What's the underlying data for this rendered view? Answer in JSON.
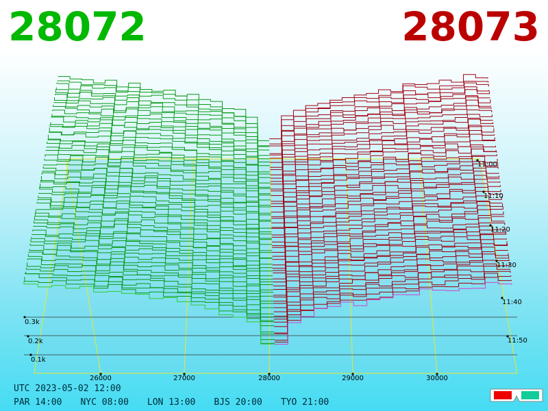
{
  "header": {
    "bid": "28072",
    "ask": "28073"
  },
  "price_axis": [
    "26000",
    "27000",
    "28000",
    "29000",
    "30000"
  ],
  "time_axis": [
    "11:00",
    "11:10",
    "11:20",
    "11:30",
    "11:40",
    "11:50"
  ],
  "depth_axis": [
    "0.3k",
    "0.2k",
    "0.1k"
  ],
  "footer": {
    "utc": "UTC 2023-05-02 12:00",
    "zones": [
      "PAR 14:00",
      "NYC 08:00",
      "LON 13:00",
      "BJS 20:00",
      "TYO 21:00"
    ]
  }
}
